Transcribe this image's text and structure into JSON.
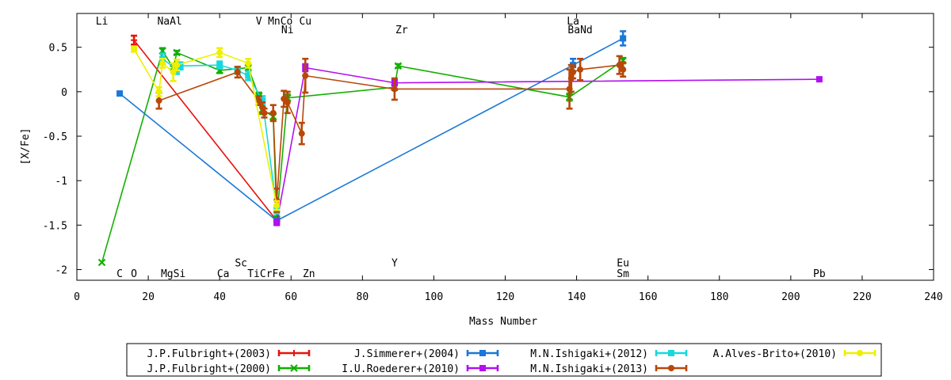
{
  "chart_data": {
    "type": "line",
    "xlabel": "Mass Number",
    "ylabel": "[X/Fe]",
    "xlim": [
      0,
      240
    ],
    "ylim": [
      -2.12,
      0.88
    ],
    "xticks": [
      0,
      20,
      40,
      60,
      80,
      100,
      120,
      140,
      160,
      180,
      200,
      220,
      240
    ],
    "yticks": [
      {
        "v": 0.5,
        "label": "0.5"
      },
      {
        "v": 0,
        "label": "0"
      },
      {
        "v": -0.5,
        "label": "-0.5"
      },
      {
        "v": -1,
        "label": "-1"
      },
      {
        "v": -1.5,
        "label": "-1.5"
      },
      {
        "v": -2,
        "label": "-2"
      }
    ],
    "grid": false,
    "legend_position": "bottom",
    "element_labels": [
      {
        "text": "Li",
        "x": 7,
        "y": 0.8
      },
      {
        "text": "NaAl",
        "x": 26,
        "y": 0.8
      },
      {
        "text": "V",
        "x": 51,
        "y": 0.8
      },
      {
        "text": "MnCo",
        "x": 57,
        "y": 0.8
      },
      {
        "text": "Cu",
        "x": 64,
        "y": 0.8
      },
      {
        "text": "La",
        "x": 139,
        "y": 0.8
      },
      {
        "text": "Ni",
        "x": 59,
        "y": 0.7
      },
      {
        "text": "Zr",
        "x": 91,
        "y": 0.7
      },
      {
        "text": "BaNd",
        "x": 141,
        "y": 0.7
      },
      {
        "text": "Sc",
        "x": 46,
        "y": -1.92
      },
      {
        "text": "Y",
        "x": 89,
        "y": -1.92
      },
      {
        "text": "Eu",
        "x": 153,
        "y": -1.92
      },
      {
        "text": "C",
        "x": 12,
        "y": -2.04
      },
      {
        "text": "O",
        "x": 16,
        "y": -2.04
      },
      {
        "text": "MgSi",
        "x": 27,
        "y": -2.04
      },
      {
        "text": "Ca",
        "x": 41,
        "y": -2.04
      },
      {
        "text": "TiCrFe",
        "x": 53,
        "y": -2.04
      },
      {
        "text": "Zn",
        "x": 65,
        "y": -2.04
      },
      {
        "text": "Sm",
        "x": 153,
        "y": -2.04
      },
      {
        "text": "Pb",
        "x": 208,
        "y": -2.04
      }
    ],
    "series": [
      {
        "name": "J.P.Fulbright+(2003)",
        "color": "#e8120c",
        "marker": "plus",
        "points": [
          {
            "x": 16,
            "y": 0.58,
            "err": 0.05
          },
          {
            "x": 56,
            "y": -1.45,
            "err": 0.03
          }
        ]
      },
      {
        "name": "J.P.Fulbright+(2000)",
        "color": "#12b000",
        "marker": "x",
        "points": [
          {
            "x": 7,
            "y": -1.92,
            "err": 0
          },
          {
            "x": 24,
            "y": 0.46,
            "err": 0.03
          },
          {
            "x": 27,
            "y": 0.27,
            "err": 0.02
          },
          {
            "x": 28,
            "y": 0.44,
            "err": 0.02
          },
          {
            "x": 40,
            "y": 0.24,
            "err": 0.03
          },
          {
            "x": 48,
            "y": 0.27,
            "err": 0.03
          },
          {
            "x": 51,
            "y": -0.05,
            "err": 0.04
          },
          {
            "x": 52,
            "y": -0.2,
            "err": 0.05
          },
          {
            "x": 55,
            "y": -0.28,
            "err": 0.04
          },
          {
            "x": 56,
            "y": -1.43,
            "err": 0.03
          },
          {
            "x": 59,
            "y": -0.07,
            "err": 0.04
          },
          {
            "x": 89,
            "y": 0.05,
            "err": 0.03
          },
          {
            "x": 90,
            "y": 0.29,
            "err": 0.02
          },
          {
            "x": 138,
            "y": -0.06,
            "err": 0.04
          },
          {
            "x": 153,
            "y": 0.35,
            "err": 0.03
          }
        ]
      },
      {
        "name": "J.Simmerer+(2004)",
        "color": "#1a78d8",
        "marker": "square",
        "points": [
          {
            "x": 12,
            "y": -0.02,
            "err": 0
          },
          {
            "x": 56,
            "y": -1.45,
            "err": 0.02
          },
          {
            "x": 139,
            "y": 0.3,
            "err": 0.07
          },
          {
            "x": 153,
            "y": 0.6,
            "err": 0.08
          }
        ]
      },
      {
        "name": "I.U.Roederer+(2010)",
        "color": "#b30ff0",
        "marker": "square",
        "points": [
          {
            "x": 56,
            "y": -1.47,
            "err": 0.03
          },
          {
            "x": 64,
            "y": 0.27,
            "err": 0.04
          },
          {
            "x": 89,
            "y": 0.1,
            "err": 0.03
          },
          {
            "x": 208,
            "y": 0.14,
            "err": 0
          }
        ]
      },
      {
        "name": "M.N.Ishigaki+(2012)",
        "color": "#18d8de",
        "marker": "square",
        "points": [
          {
            "x": 24,
            "y": 0.37,
            "err": 0.06
          },
          {
            "x": 28,
            "y": 0.25,
            "err": 0.05
          },
          {
            "x": 29,
            "y": 0.29,
            "err": 0.04
          },
          {
            "x": 40,
            "y": 0.3,
            "err": 0.04
          },
          {
            "x": 45,
            "y": 0.24,
            "err": 0.04
          },
          {
            "x": 48,
            "y": 0.18,
            "err": 0.05
          },
          {
            "x": 52,
            "y": -0.1,
            "err": 0.05
          },
          {
            "x": 56,
            "y": -1.33,
            "err": 0.04
          }
        ]
      },
      {
        "name": "M.N.Ishigaki+(2013)",
        "color": "#b84808",
        "marker": "circle",
        "points": [
          {
            "x": 23,
            "y": -0.1,
            "err": 0.09
          },
          {
            "x": 45,
            "y": 0.22,
            "err": 0.06
          },
          {
            "x": 51,
            "y": -0.1,
            "err": 0.05
          },
          {
            "x": 52,
            "y": -0.18,
            "err": 0.06
          },
          {
            "x": 52.5,
            "y": -0.24,
            "err": 0.05
          },
          {
            "x": 55,
            "y": -0.24,
            "err": 0.09
          },
          {
            "x": 56,
            "y": -1.22,
            "err": 0.13
          },
          {
            "x": 58,
            "y": -0.08,
            "err": 0.09
          },
          {
            "x": 59,
            "y": -0.12,
            "err": 0.12
          },
          {
            "x": 63,
            "y": -0.47,
            "err": 0.12
          },
          {
            "x": 64,
            "y": 0.18,
            "err": 0.19
          },
          {
            "x": 89,
            "y": 0.03,
            "err": 0.12
          },
          {
            "x": 138,
            "y": 0.03,
            "err": 0.22
          },
          {
            "x": 138.5,
            "y": 0.15,
            "err": 0.15
          },
          {
            "x": 139,
            "y": 0.22,
            "err": 0.07
          },
          {
            "x": 141,
            "y": 0.25,
            "err": 0.12
          },
          {
            "x": 152,
            "y": 0.3,
            "err": 0.1
          },
          {
            "x": 153,
            "y": 0.25,
            "err": 0.08
          }
        ]
      },
      {
        "name": "A.Alves-Brito+(2010)",
        "color": "#eef000",
        "marker": "circle",
        "points": [
          {
            "x": 16,
            "y": 0.48,
            "err": 0.03
          },
          {
            "x": 23,
            "y": 0.0,
            "err": 0.05
          },
          {
            "x": 24,
            "y": 0.32,
            "err": 0.05
          },
          {
            "x": 27,
            "y": 0.22,
            "err": 0.1
          },
          {
            "x": 28,
            "y": 0.3,
            "err": 0.06
          },
          {
            "x": 40,
            "y": 0.44,
            "err": 0.05
          },
          {
            "x": 48,
            "y": 0.32,
            "err": 0.05
          },
          {
            "x": 56,
            "y": -1.28,
            "err": 0.05
          }
        ]
      }
    ]
  }
}
